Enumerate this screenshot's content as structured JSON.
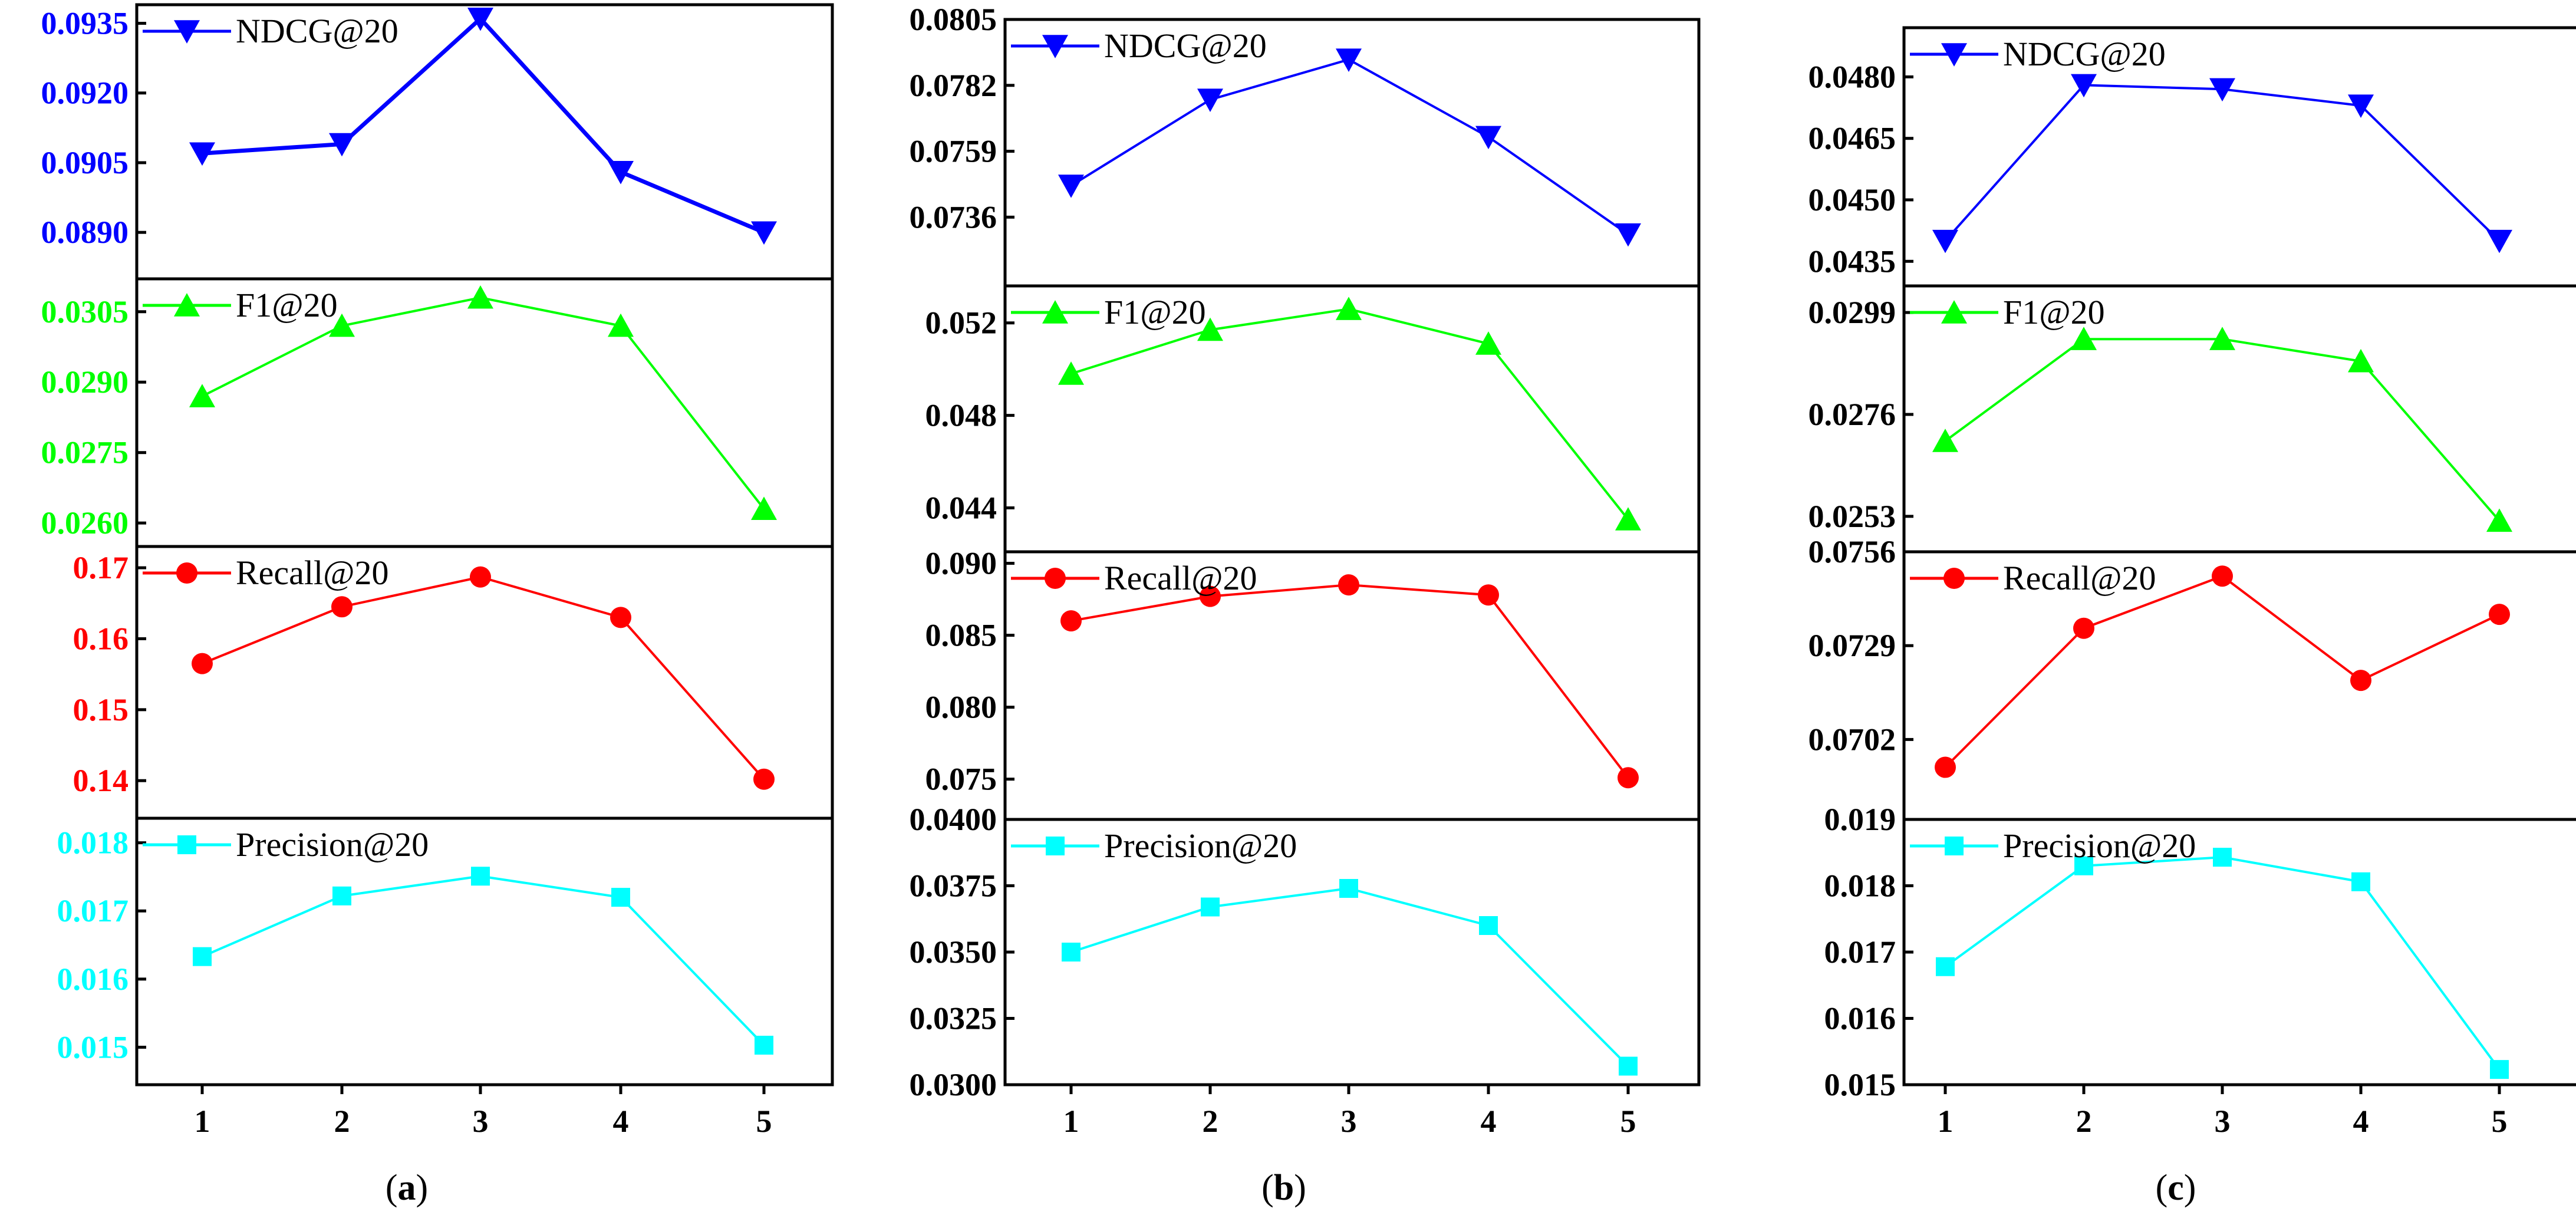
{
  "colors": {
    "NDCG@20": "#0000ff",
    "F1@20": "#00ff00",
    "Recall@20": "#ff0000",
    "Precision@20": "#00ffff",
    "axis": "#000000"
  },
  "chart_data": [
    {
      "type": "line",
      "caption_label": "a",
      "x": [
        1,
        2,
        3,
        4,
        5
      ],
      "x_ticks": [
        "1",
        "2",
        "3",
        "4",
        "5"
      ],
      "panels": [
        {
          "metric": "NDCG@20",
          "marker": "triangle-down",
          "bold_ticks": true,
          "colored_ticks": true,
          "values": [
            0.0907,
            0.0909,
            0.0936,
            0.0903,
            0.089
          ],
          "ylim": [
            0.088,
            0.0939
          ],
          "yticks": [
            0.089,
            0.0905,
            0.092,
            0.0935
          ],
          "ytick_labels": [
            "0.0890",
            "0.0905",
            "0.0920",
            "0.0935"
          ]
        },
        {
          "metric": "F1@20",
          "marker": "triangle-up",
          "bold_ticks": true,
          "colored_ticks": true,
          "values": [
            0.0287,
            0.0302,
            0.0308,
            0.0302,
            0.0263
          ],
          "ylim": [
            0.0255,
            0.0312
          ],
          "yticks": [
            0.026,
            0.0275,
            0.029,
            0.0305
          ],
          "ytick_labels": [
            "0.0260",
            "0.0275",
            "0.0290",
            "0.0305"
          ]
        },
        {
          "metric": "Recall@20",
          "marker": "circle",
          "bold_ticks": true,
          "colored_ticks": true,
          "values": [
            0.1565,
            0.1645,
            0.1687,
            0.163,
            0.1402
          ],
          "ylim": [
            0.1347,
            0.173
          ],
          "yticks": [
            0.14,
            0.15,
            0.16,
            0.17
          ],
          "ytick_labels": [
            "0.14",
            "0.15",
            "0.16",
            "0.17"
          ]
        },
        {
          "metric": "Precision@20",
          "marker": "square",
          "bold_ticks": true,
          "colored_ticks": true,
          "values": [
            0.01633,
            0.01722,
            0.01751,
            0.0172,
            0.01503
          ],
          "ylim": [
            0.01445,
            0.01836
          ],
          "yticks": [
            0.015,
            0.016,
            0.017,
            0.018
          ],
          "ytick_labels": [
            "0.015",
            "0.016",
            "0.017",
            "0.018"
          ]
        }
      ]
    },
    {
      "type": "line",
      "caption_label": "b",
      "x": [
        1,
        2,
        3,
        4,
        5
      ],
      "x_ticks": [
        "1",
        "2",
        "3",
        "4",
        "5"
      ],
      "panels": [
        {
          "metric": "NDCG@20",
          "marker": "triangle-down",
          "bold_ticks": false,
          "colored_ticks": false,
          "values": [
            0.0747,
            0.0777,
            0.0791,
            0.0764,
            0.073
          ],
          "ylim": [
            0.0712,
            0.0805
          ],
          "yticks": [
            0.0736,
            0.0759,
            0.0782,
            0.0805
          ],
          "ytick_labels": [
            "0.0736",
            "0.0759",
            "0.0782",
            "0.0805"
          ]
        },
        {
          "metric": "F1@20",
          "marker": "triangle-up",
          "bold_ticks": false,
          "colored_ticks": false,
          "values": [
            0.0498,
            0.0517,
            0.0526,
            0.0511,
            0.0435
          ],
          "ylim": [
            0.0421,
            0.0536
          ],
          "yticks": [
            0.044,
            0.048,
            0.052
          ],
          "ytick_labels": [
            "0.044",
            "0.048",
            "0.052"
          ]
        },
        {
          "metric": "Recall@20",
          "marker": "circle",
          "bold_ticks": false,
          "colored_ticks": false,
          "values": [
            0.086,
            0.0877,
            0.0885,
            0.0878,
            0.0751
          ],
          "ylim": [
            0.0722,
            0.0908
          ],
          "yticks": [
            0.075,
            0.08,
            0.085,
            0.09
          ],
          "ytick_labels": [
            "0.075",
            "0.080",
            "0.085",
            "0.090"
          ]
        },
        {
          "metric": "Precision@20",
          "marker": "square",
          "bold_ticks": false,
          "colored_ticks": false,
          "values": [
            0.035,
            0.0367,
            0.0374,
            0.036,
            0.0307
          ],
          "ylim": [
            0.03,
            0.04
          ],
          "yticks": [
            0.03,
            0.0325,
            0.035,
            0.0375,
            0.04
          ],
          "ytick_labels": [
            "0.0300",
            "0.0325",
            "0.0350",
            "0.0375",
            "0.0400"
          ]
        }
      ]
    },
    {
      "type": "line",
      "caption_label": "c",
      "x": [
        1,
        2,
        3,
        4,
        5
      ],
      "x_ticks": [
        "1",
        "2",
        "3",
        "4",
        "5"
      ],
      "panels": [
        {
          "metric": "NDCG@20",
          "marker": "triangle-down",
          "bold_ticks": false,
          "colored_ticks": false,
          "values": [
            0.044,
            0.0478,
            0.0477,
            0.0473,
            0.044
          ],
          "ylim": [
            0.0429,
            0.0492
          ],
          "yticks": [
            0.0435,
            0.045,
            0.0465,
            0.048
          ],
          "ytick_labels": [
            "0.0435",
            "0.0450",
            "0.0465",
            "0.0480"
          ]
        },
        {
          "metric": "F1@20",
          "marker": "triangle-up",
          "bold_ticks": false,
          "colored_ticks": false,
          "values": [
            0.027,
            0.0293,
            0.0293,
            0.0288,
            0.0252
          ],
          "ylim": [
            0.0245,
            0.0305
          ],
          "yticks": [
            0.0253,
            0.0276,
            0.0299
          ],
          "ytick_labels": [
            "0.0253",
            "0.0276",
            "0.0299"
          ]
        },
        {
          "metric": "Recall@20",
          "marker": "circle",
          "bold_ticks": false,
          "colored_ticks": false,
          "values": [
            0.0694,
            0.0734,
            0.0749,
            0.0719,
            0.0738
          ],
          "ylim": [
            0.0679,
            0.0756
          ],
          "yticks": [
            0.0702,
            0.0729,
            0.0756
          ],
          "ytick_labels": [
            "0.0702",
            "0.0729",
            "0.0756"
          ]
        },
        {
          "metric": "Precision@20",
          "marker": "square",
          "bold_ticks": false,
          "colored_ticks": false,
          "values": [
            0.01678,
            0.0183,
            0.01843,
            0.01806,
            0.01523
          ],
          "ylim": [
            0.015,
            0.019
          ],
          "yticks": [
            0.015,
            0.016,
            0.017,
            0.018,
            0.019
          ],
          "ytick_labels": [
            "0.015",
            "0.016",
            "0.017",
            "0.018",
            "0.019"
          ]
        }
      ]
    }
  ]
}
